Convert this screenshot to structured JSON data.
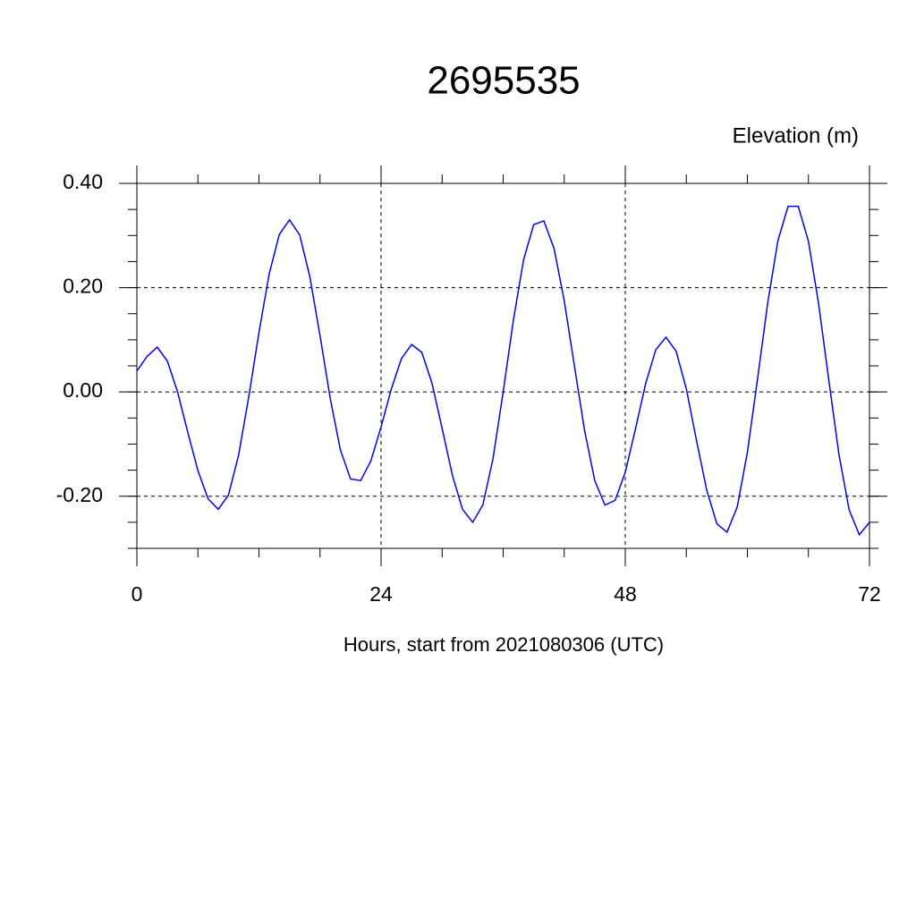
{
  "chart_data": {
    "type": "line",
    "title": "2695535",
    "ylabel": "Elevation (m)",
    "xlabel": "Hours, start from 2021080306 (UTC)",
    "x": [
      0,
      1,
      2,
      3,
      4,
      5,
      6,
      7,
      8,
      9,
      10,
      11,
      12,
      13,
      14,
      15,
      16,
      17,
      18,
      19,
      20,
      21,
      22,
      23,
      24,
      25,
      26,
      27,
      28,
      29,
      30,
      31,
      32,
      33,
      34,
      35,
      36,
      37,
      38,
      39,
      40,
      41,
      42,
      43,
      44,
      45,
      46,
      47,
      48,
      49,
      50,
      51,
      52,
      53,
      54,
      55,
      56,
      57,
      58,
      59,
      60,
      61,
      62,
      63,
      64,
      65,
      66,
      67,
      68,
      69,
      70,
      71,
      72
    ],
    "series": [
      {
        "name": "Elevation",
        "color": "#0000ff",
        "values": [
          0.04,
          0.068,
          0.086,
          0.059,
          0.0,
          -0.077,
          -0.151,
          -0.205,
          -0.225,
          -0.198,
          -0.121,
          -0.009,
          0.114,
          0.226,
          0.302,
          0.33,
          0.301,
          0.221,
          0.108,
          -0.012,
          -0.111,
          -0.167,
          -0.17,
          -0.132,
          -0.067,
          0.005,
          0.064,
          0.091,
          0.076,
          0.017,
          -0.07,
          -0.159,
          -0.225,
          -0.25,
          -0.217,
          -0.128,
          0.0,
          0.137,
          0.253,
          0.321,
          0.328,
          0.275,
          0.175,
          0.05,
          -0.074,
          -0.17,
          -0.217,
          -0.208,
          -0.154,
          -0.071,
          0.016,
          0.081,
          0.105,
          0.078,
          0.006,
          -0.093,
          -0.188,
          -0.253,
          -0.269,
          -0.221,
          -0.116,
          0.025,
          0.171,
          0.29,
          0.356,
          0.356,
          0.289,
          0.169,
          0.023,
          -0.12,
          -0.226,
          -0.274,
          -0.25
        ]
      }
    ],
    "xlim": [
      0,
      72
    ],
    "xticks": [
      0,
      24,
      48,
      72
    ],
    "ylim": [
      -0.3,
      0.4
    ],
    "yticks": [
      {
        "value": -0.2,
        "label": "-0.20"
      },
      {
        "value": 0,
        "label": "0.00"
      },
      {
        "value": 0.2,
        "label": "0.20"
      },
      {
        "value": 0.4,
        "label": "0.40"
      }
    ],
    "grid": true
  }
}
